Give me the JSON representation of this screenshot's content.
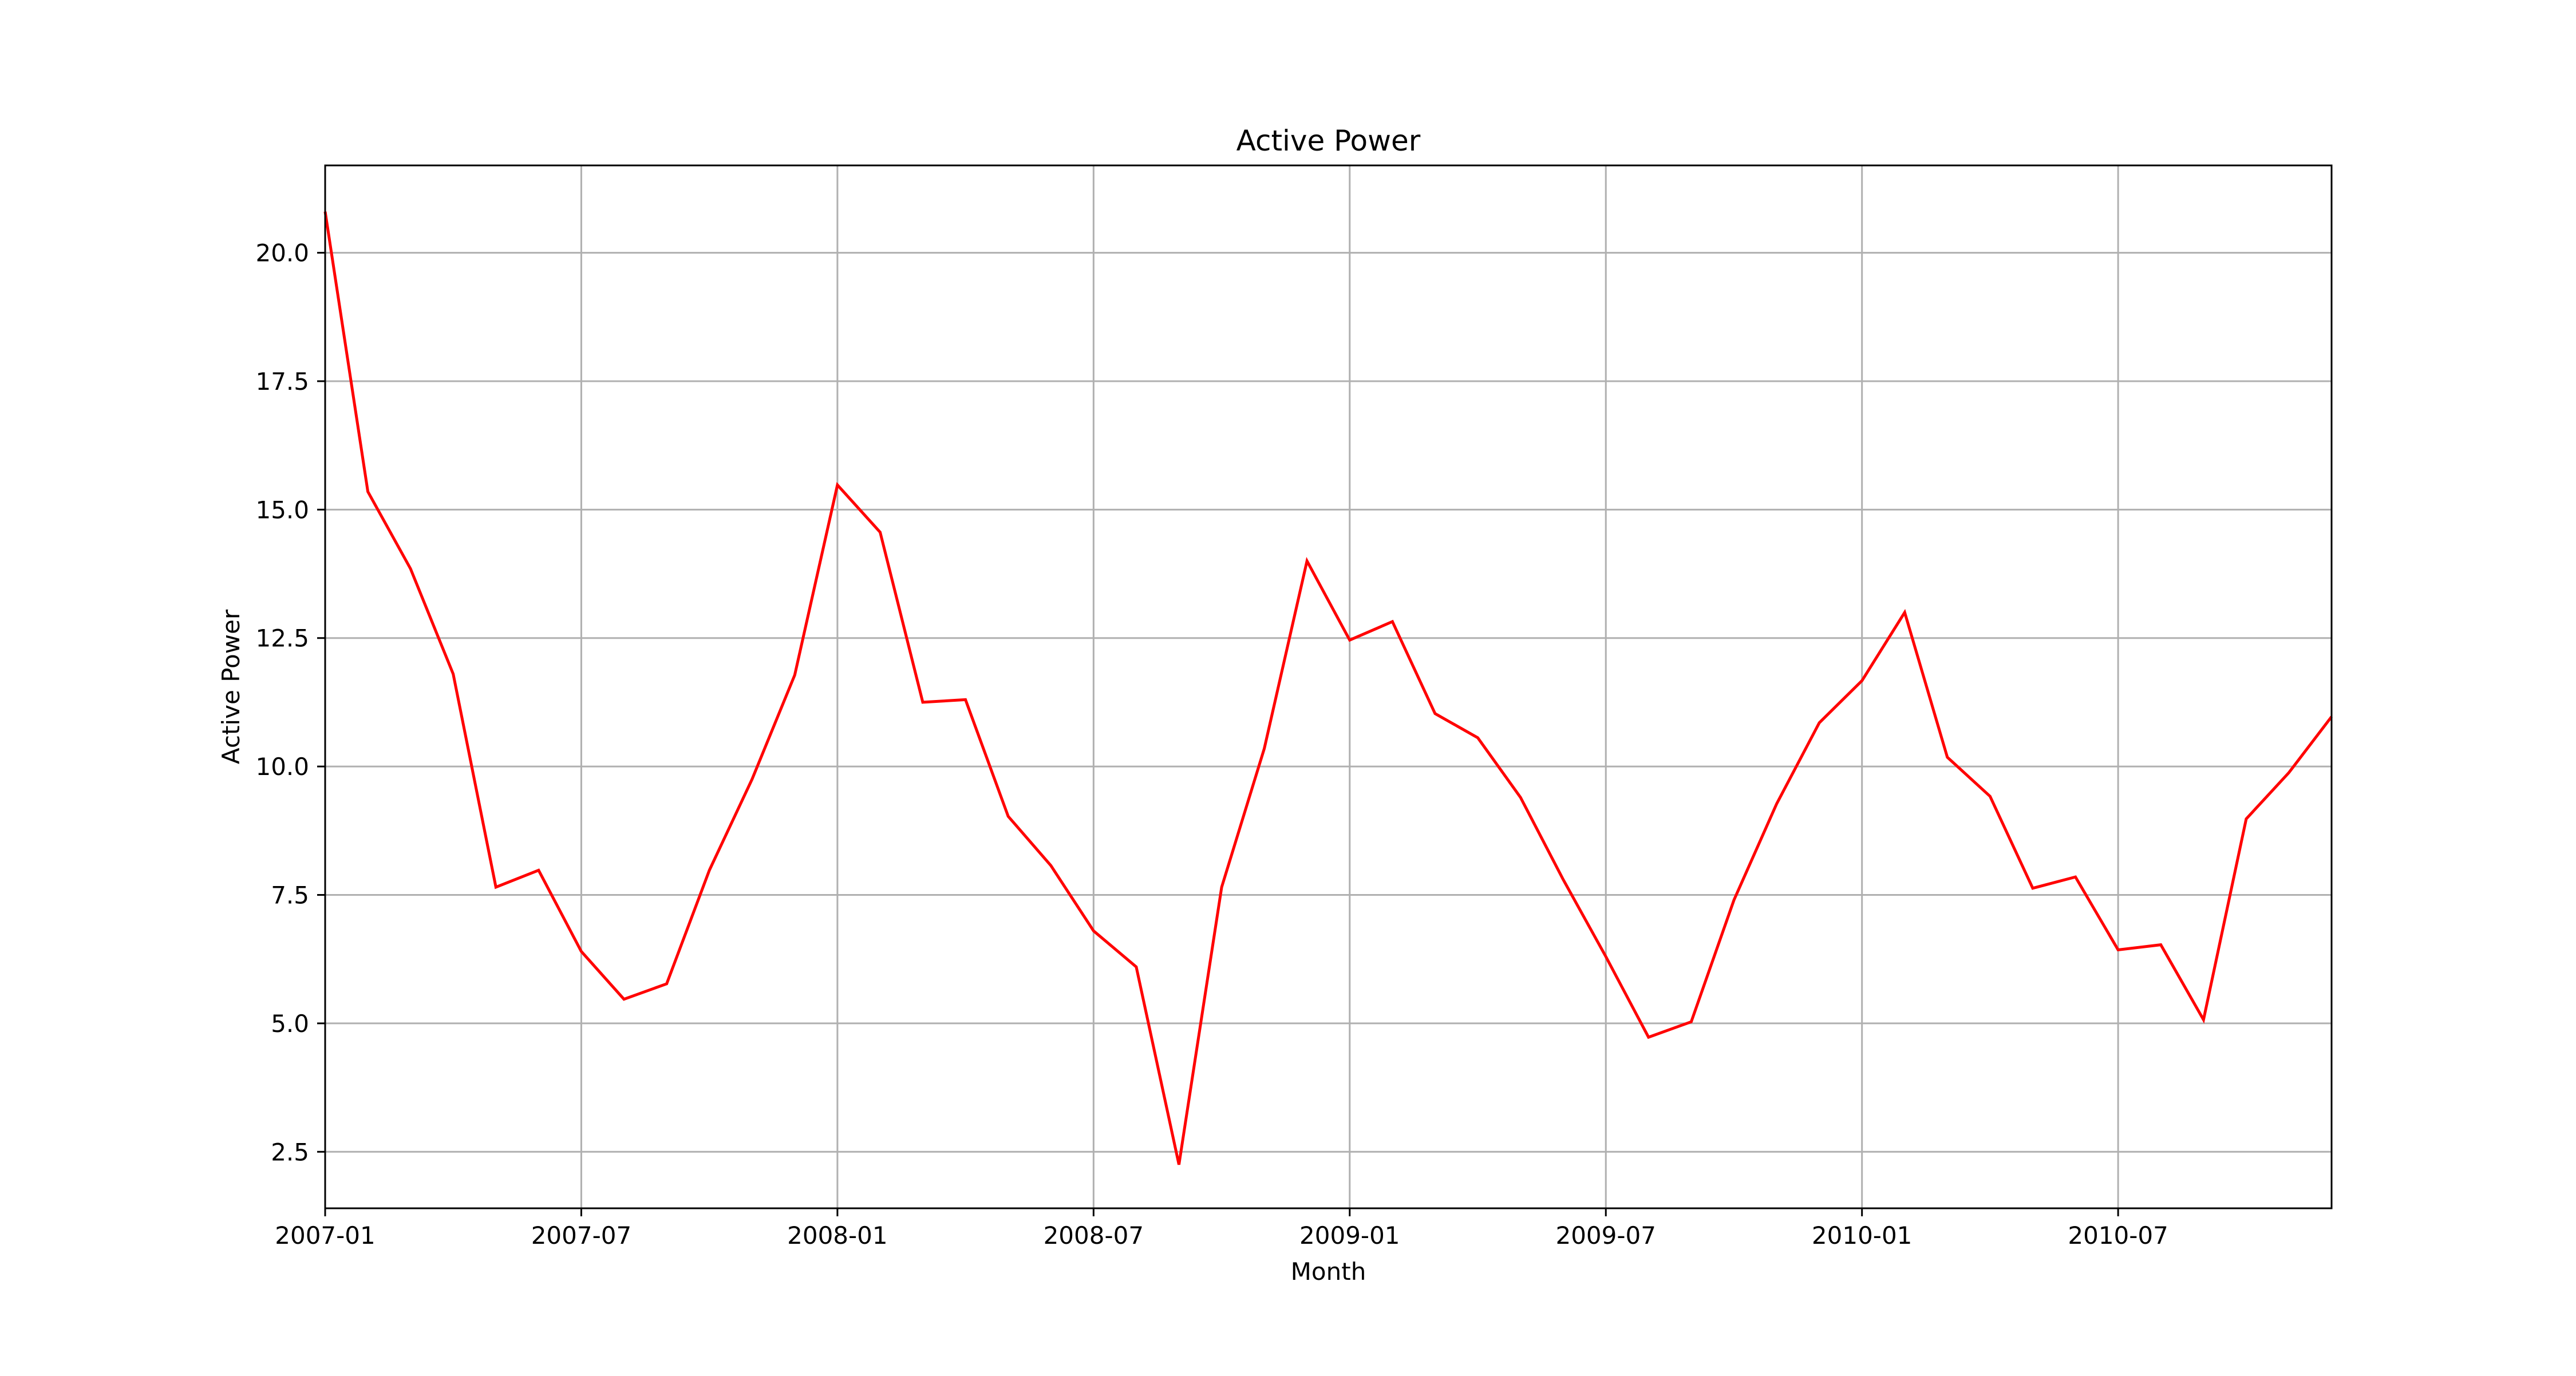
{
  "chart_data": {
    "type": "line",
    "title": "Active Power",
    "xlabel": "Month",
    "ylabel": "Active Power",
    "x_range": [
      "2007-01",
      "2010-12"
    ],
    "ylim": [
      1.4,
      21.7
    ],
    "grid": true,
    "colors": {
      "line": "#ff0000",
      "grid": "#b0b0b0",
      "axes": "#000000"
    },
    "x_ticks": [
      {
        "value": "2007-01",
        "label": "2007-01"
      },
      {
        "value": "2007-07",
        "label": "2007-07"
      },
      {
        "value": "2008-01",
        "label": "2008-01"
      },
      {
        "value": "2008-07",
        "label": "2008-07"
      },
      {
        "value": "2009-01",
        "label": "2009-01"
      },
      {
        "value": "2009-07",
        "label": "2009-07"
      },
      {
        "value": "2010-01",
        "label": "2010-01"
      },
      {
        "value": "2010-07",
        "label": "2010-07"
      }
    ],
    "y_ticks": [
      {
        "value": 2.5,
        "label": "2.5"
      },
      {
        "value": 5.0,
        "label": "5.0"
      },
      {
        "value": 7.5,
        "label": "7.5"
      },
      {
        "value": 10.0,
        "label": "10.0"
      },
      {
        "value": 12.5,
        "label": "12.5"
      },
      {
        "value": 15.0,
        "label": "15.0"
      },
      {
        "value": 17.5,
        "label": "17.5"
      },
      {
        "value": 20.0,
        "label": "20.0"
      }
    ],
    "series": [
      {
        "x": [
          "2007-01",
          "2007-02",
          "2007-03",
          "2007-04",
          "2007-05",
          "2007-06",
          "2007-07",
          "2007-08",
          "2007-09",
          "2007-10",
          "2007-11",
          "2007-12",
          "2008-01",
          "2008-02",
          "2008-03",
          "2008-04",
          "2008-05",
          "2008-06",
          "2008-07",
          "2008-08",
          "2008-09",
          "2008-10",
          "2008-11",
          "2008-12",
          "2009-01",
          "2009-02",
          "2009-03",
          "2009-04",
          "2009-05",
          "2009-06",
          "2009-07",
          "2009-08",
          "2009-09",
          "2009-10",
          "2009-11",
          "2009-12",
          "2010-01",
          "2010-02",
          "2010-03",
          "2010-04",
          "2010-05",
          "2010-06",
          "2010-07",
          "2010-08",
          "2010-09",
          "2010-10",
          "2010-11",
          "2010-12"
        ],
        "values": [
          20.8,
          15.35,
          13.85,
          11.8,
          7.65,
          7.98,
          6.4,
          5.47,
          5.77,
          7.98,
          9.75,
          11.78,
          15.48,
          14.56,
          11.25,
          11.3,
          9.03,
          8.07,
          6.8,
          6.1,
          2.25,
          7.65,
          10.35,
          14.0,
          12.46,
          12.82,
          11.03,
          10.56,
          9.4,
          7.8,
          6.3,
          4.73,
          5.03,
          7.4,
          9.27,
          10.85,
          11.67,
          13.0,
          10.18,
          9.42,
          7.63,
          7.85,
          6.43,
          6.53,
          5.07,
          8.98,
          9.88,
          10.97
        ]
      }
    ]
  }
}
